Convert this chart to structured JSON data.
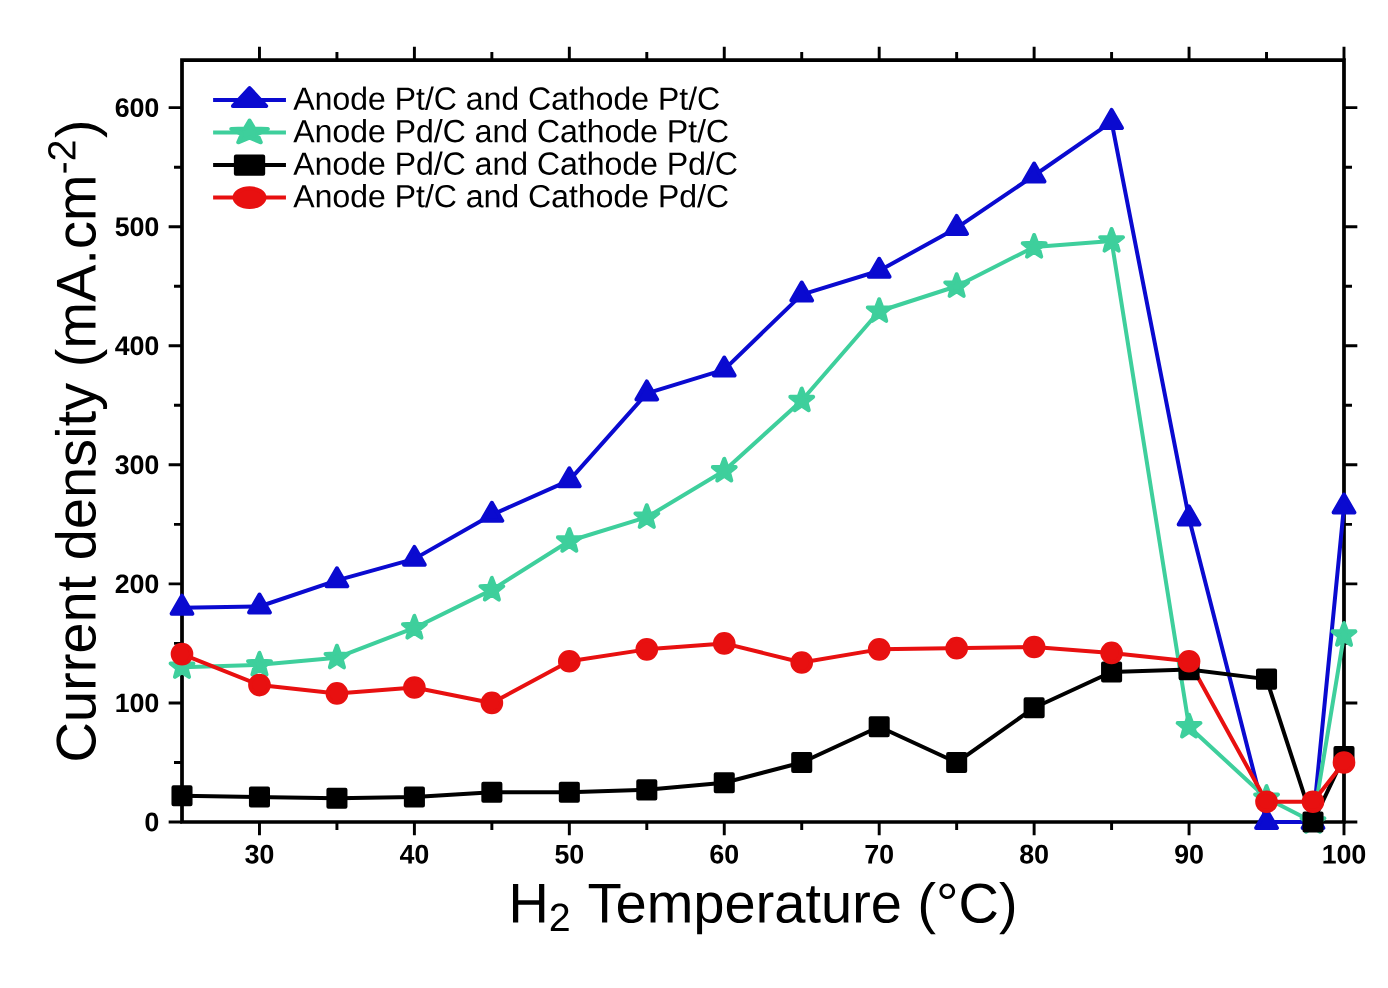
{
  "chart_data": {
    "type": "line",
    "xlabel": "H$_{2}$ Temperature (°C)",
    "ylabel": "Current density (mA.cm$^{-2}$)",
    "xlim": [
      25,
      100
    ],
    "ylim": [
      0,
      640
    ],
    "xticks": [
      30,
      40,
      50,
      60,
      70,
      80,
      90,
      100
    ],
    "yticks": [
      0,
      100,
      200,
      300,
      400,
      500,
      600
    ],
    "legend": "top left",
    "line_style": "solid",
    "x": [
      25,
      30,
      35,
      40,
      45,
      50,
      55,
      60,
      65,
      70,
      75,
      80,
      85,
      90,
      95,
      98,
      100
    ],
    "series": [
      {
        "name": "Anode Pt/C and Cathode Pt/C",
        "color": "#0a0ad0",
        "marker": "triangle",
        "values": [
          180,
          181,
          203,
          221,
          258,
          287,
          360,
          380,
          443,
          463,
          499,
          543,
          588,
          255,
          0,
          0,
          265
        ]
      },
      {
        "name": "Anode Pd/C and Cathode Pt/C",
        "color": "#3ecf9c",
        "marker": "star",
        "values": [
          130,
          132,
          138,
          163,
          195,
          236,
          256,
          295,
          354,
          429,
          450,
          483,
          488,
          80,
          20,
          0,
          157
        ]
      },
      {
        "name": "Anode Pd/C and Cathode Pd/C",
        "color": "#000000",
        "marker": "square",
        "values": [
          22,
          21,
          20,
          21,
          25,
          25,
          27,
          33,
          50,
          80,
          50,
          96,
          126,
          128,
          120,
          0,
          55
        ]
      },
      {
        "name": "Anode Pt/C and Cathode Pd/C",
        "color": "#e81010",
        "marker": "circle",
        "values": [
          141,
          115,
          108,
          113,
          100,
          135,
          145,
          150,
          134,
          145,
          146,
          147,
          142,
          135,
          17,
          17,
          50
        ]
      }
    ]
  }
}
